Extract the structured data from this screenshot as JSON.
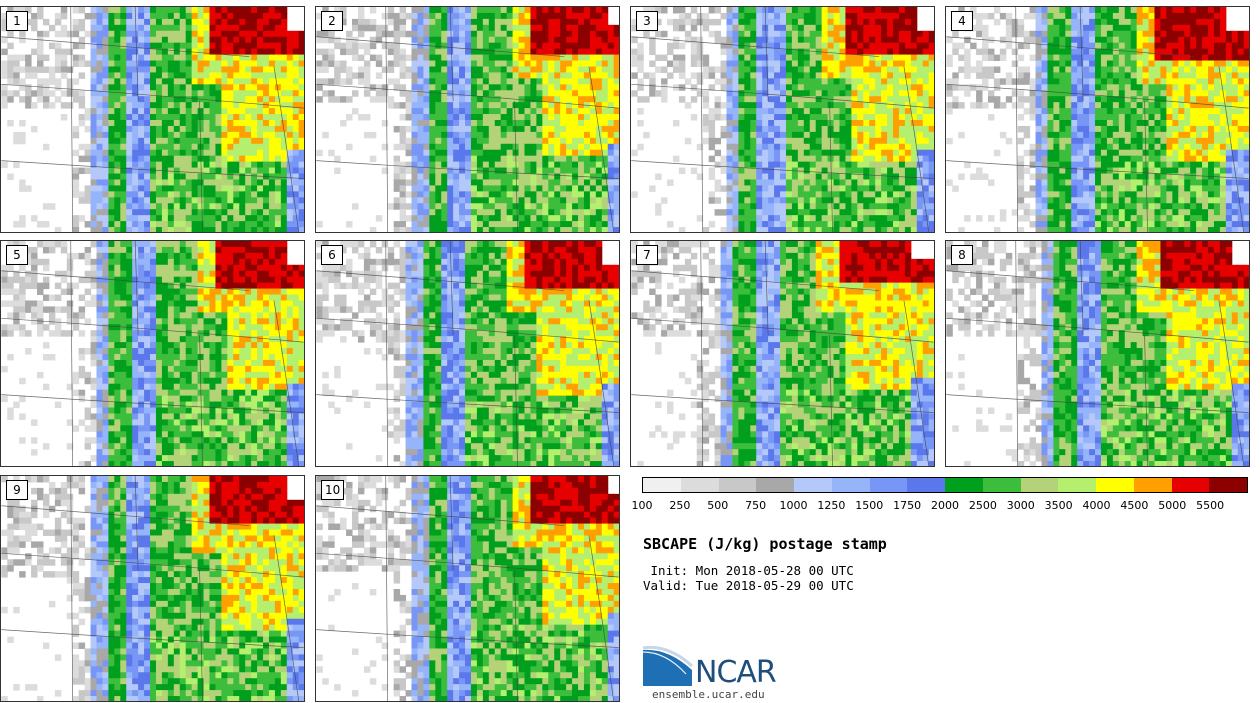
{
  "title": "SBCAPE (J/kg) postage stamp",
  "init_line": " Init: Mon 2018-05-28 00 UTC",
  "valid_line": "Valid: Tue 2018-05-29 00 UTC",
  "panels": [
    {
      "label": "1"
    },
    {
      "label": "2"
    },
    {
      "label": "3"
    },
    {
      "label": "4"
    },
    {
      "label": "5"
    },
    {
      "label": "6"
    },
    {
      "label": "7"
    },
    {
      "label": "8"
    },
    {
      "label": "9"
    },
    {
      "label": "10"
    }
  ],
  "colorbar": {
    "ticks": [
      "100",
      "250",
      "500",
      "750",
      "1000",
      "1250",
      "1500",
      "1750",
      "2000",
      "2500",
      "3000",
      "3500",
      "4000",
      "4500",
      "5000",
      "5500"
    ],
    "colors": [
      "#f0f0f0",
      "#dcdcdc",
      "#c8c8c8",
      "#a8a8a8",
      "#b4c8fa",
      "#96b4fa",
      "#7896f5",
      "#5a78eb",
      "#00a01e",
      "#3cbe3c",
      "#b4d278",
      "#b4f06e",
      "#ffff00",
      "#ffa000",
      "#e60000",
      "#8c0000"
    ]
  },
  "logo": {
    "text": "NCAR",
    "url": "ensemble.ucar.edu",
    "colors": {
      "blue": "#1f4e7a",
      "accent": "#2a7fc0"
    }
  }
}
